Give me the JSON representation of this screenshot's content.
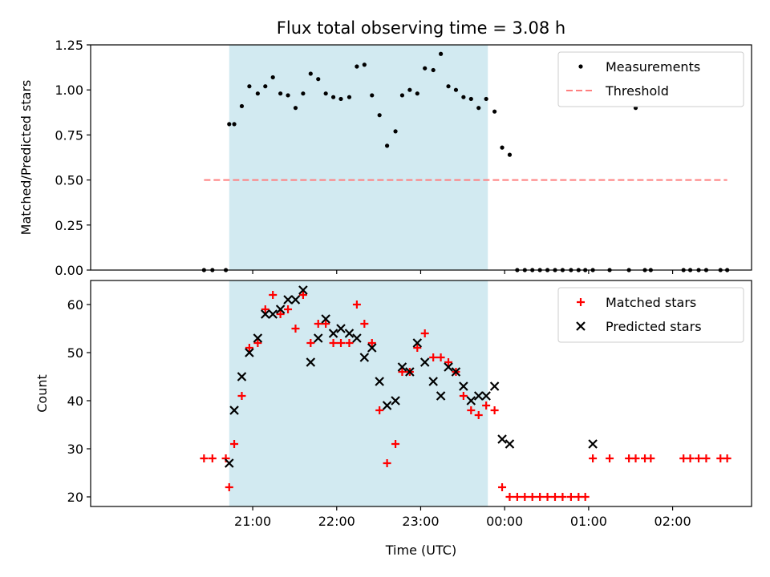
{
  "figure": {
    "title": "Flux total observing time = 3.08 h",
    "xlabel": "Time (UTC)"
  },
  "colors": {
    "shade": "#add8e6",
    "matched": "#ff0000",
    "predicted": "#000000",
    "threshold": "#ff7f7f",
    "measurement": "#000000"
  },
  "chart_data": [
    {
      "type": "scatter",
      "ylabel": "Matched/Predicted stars",
      "x_unit": "hours since 20:00 UTC",
      "xlim": [
        19.07,
        26.94
      ],
      "ylim": [
        0,
        1.25
      ],
      "yticks": [
        "0.00",
        "0.25",
        "0.50",
        "0.75",
        "1.00",
        "1.25"
      ],
      "shaded_interval": [
        20.72,
        23.8
      ],
      "grid": false,
      "legend_position": "upper right",
      "series": [
        {
          "name": "Measurements",
          "kind": "dots",
          "x": [
            20.42,
            20.52,
            20.68,
            20.72,
            20.78,
            20.87,
            20.96,
            21.06,
            21.15,
            21.24,
            21.33,
            21.42,
            21.51,
            21.6,
            21.69,
            21.78,
            21.87,
            21.96,
            22.05,
            22.15,
            22.24,
            22.33,
            22.42,
            22.51,
            22.6,
            22.7,
            22.78,
            22.87,
            22.96,
            23.05,
            23.15,
            23.24,
            23.33,
            23.42,
            23.51,
            23.6,
            23.69,
            23.78,
            23.88,
            23.97,
            24.06,
            24.15,
            24.24,
            24.33,
            24.42,
            24.51,
            24.6,
            24.69,
            24.79,
            24.88,
            24.96,
            25.05,
            25.25,
            25.48,
            25.56,
            25.67,
            25.74,
            26.13,
            26.21,
            26.31,
            26.4,
            26.57,
            26.65
          ],
          "y": [
            0,
            0,
            0,
            0.81,
            0.81,
            0.91,
            1.02,
            0.98,
            1.02,
            1.07,
            0.98,
            0.97,
            0.9,
            0.98,
            1.09,
            1.06,
            0.98,
            0.96,
            0.95,
            0.96,
            1.13,
            1.14,
            0.97,
            0.86,
            0.69,
            0.77,
            0.97,
            1.0,
            0.98,
            1.12,
            1.11,
            1.2,
            1.02,
            1.0,
            0.96,
            0.95,
            0.9,
            0.95,
            0.88,
            0.68,
            0.64,
            0,
            0,
            0,
            0,
            0,
            0,
            0,
            0,
            0,
            0,
            0,
            0,
            0,
            0.9,
            0,
            0,
            0,
            0,
            0,
            0,
            0,
            0
          ]
        },
        {
          "name": "Threshold",
          "kind": "dashed-line",
          "x": [
            20.42,
            26.65
          ],
          "y": [
            0.5,
            0.5
          ]
        }
      ]
    },
    {
      "type": "scatter",
      "ylabel": "Count",
      "x_unit": "hours since 20:00 UTC",
      "xlim": [
        19.07,
        26.94
      ],
      "ylim": [
        18,
        65
      ],
      "yticks": [
        "20",
        "30",
        "40",
        "50",
        "60"
      ],
      "xtick_values": [
        21,
        22,
        23,
        24,
        25,
        26
      ],
      "xticks": [
        "21:00",
        "22:00",
        "23:00",
        "00:00",
        "01:00",
        "02:00"
      ],
      "shaded_interval": [
        20.72,
        23.8
      ],
      "grid": false,
      "legend_position": "upper right",
      "series": [
        {
          "name": "Matched stars",
          "kind": "plus",
          "x": [
            20.42,
            20.52,
            20.68,
            20.72,
            20.78,
            20.87,
            20.96,
            21.06,
            21.15,
            21.24,
            21.33,
            21.42,
            21.51,
            21.6,
            21.69,
            21.78,
            21.87,
            21.96,
            22.05,
            22.15,
            22.24,
            22.33,
            22.42,
            22.51,
            22.6,
            22.7,
            22.78,
            22.87,
            22.96,
            23.05,
            23.15,
            23.24,
            23.33,
            23.42,
            23.51,
            23.6,
            23.69,
            23.78,
            23.88,
            23.97,
            24.06,
            24.15,
            24.24,
            24.33,
            24.42,
            24.51,
            24.6,
            24.69,
            24.79,
            24.88,
            24.96,
            25.05,
            25.25,
            25.48,
            25.56,
            25.67,
            25.74,
            26.13,
            26.21,
            26.31,
            26.4,
            26.57,
            26.65
          ],
          "y": [
            28,
            28,
            28,
            22,
            31,
            41,
            51,
            52,
            59,
            62,
            58,
            59,
            55,
            62,
            52,
            56,
            56,
            52,
            52,
            52,
            60,
            56,
            52,
            38,
            27,
            31,
            46,
            46,
            51,
            54,
            49,
            49,
            48,
            46,
            41,
            38,
            37,
            39,
            38,
            22,
            20,
            20,
            20,
            20,
            20,
            20,
            20,
            20,
            20,
            20,
            20,
            28,
            28,
            28,
            28,
            28,
            28,
            28,
            28,
            28,
            28,
            28,
            28
          ]
        },
        {
          "name": "Predicted stars",
          "kind": "x",
          "x": [
            20.72,
            20.78,
            20.87,
            20.96,
            21.06,
            21.15,
            21.24,
            21.33,
            21.42,
            21.51,
            21.6,
            21.69,
            21.78,
            21.87,
            21.96,
            22.05,
            22.15,
            22.24,
            22.33,
            22.42,
            22.51,
            22.6,
            22.7,
            22.78,
            22.87,
            22.96,
            23.05,
            23.15,
            23.24,
            23.33,
            23.42,
            23.51,
            23.6,
            23.69,
            23.78,
            23.88,
            23.97,
            24.06,
            25.05
          ],
          "y": [
            27,
            38,
            45,
            50,
            53,
            58,
            58,
            59,
            61,
            61,
            63,
            48,
            53,
            57,
            54,
            55,
            54,
            53,
            49,
            51,
            44,
            39,
            40,
            47,
            46,
            52,
            48,
            44,
            41,
            47,
            46,
            43,
            40,
            41,
            41,
            43,
            32,
            31,
            31
          ]
        }
      ]
    }
  ]
}
